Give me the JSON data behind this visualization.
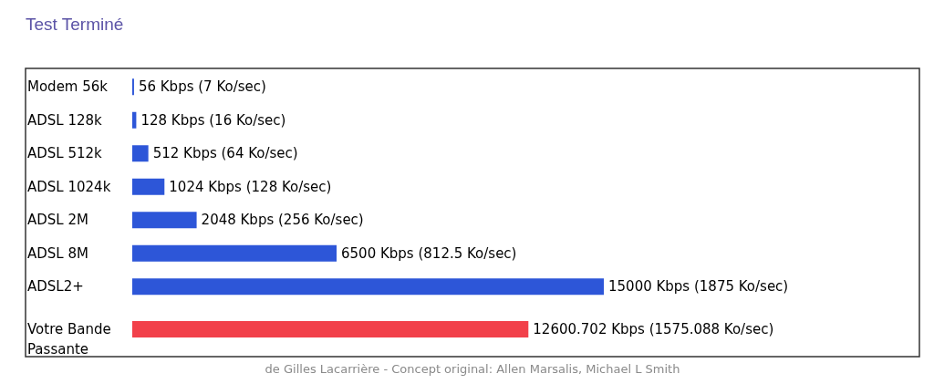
{
  "chart_data": {
    "type": "bar",
    "orientation": "horizontal",
    "title": "Test Terminé",
    "categories": [
      "Modem 56k",
      "ADSL 128k",
      "ADSL 512k",
      "ADSL 1024k",
      "ADSL 2M",
      "ADSL 8M",
      "ADSL2+",
      "Votre Bande Passante"
    ],
    "values": [
      56,
      128,
      512,
      1024,
      2048,
      6500,
      15000,
      12600.702
    ],
    "colors": [
      "#2d56d8",
      "#2d56d8",
      "#2d56d8",
      "#2d56d8",
      "#2d56d8",
      "#2d56d8",
      "#2d56d8",
      "#f2404a"
    ],
    "value_labels": [
      "56 Kbps (7 Ko/sec)",
      "128 Kbps (16 Ko/sec)",
      "512 Kbps (64 Ko/sec)",
      "1024 Kbps (128 Ko/sec)",
      "2048 Kbps (256 Ko/sec)",
      "6500 Kbps (812.5 Ko/sec)",
      "15000 Kbps (1875 Ko/sec)",
      "12600.702 Kbps (1575.088 Ko/sec)"
    ],
    "annotations": [
      "de Gilles Lacarrière - Concept original: Allen Marsalis, Michael L Smith"
    ]
  }
}
